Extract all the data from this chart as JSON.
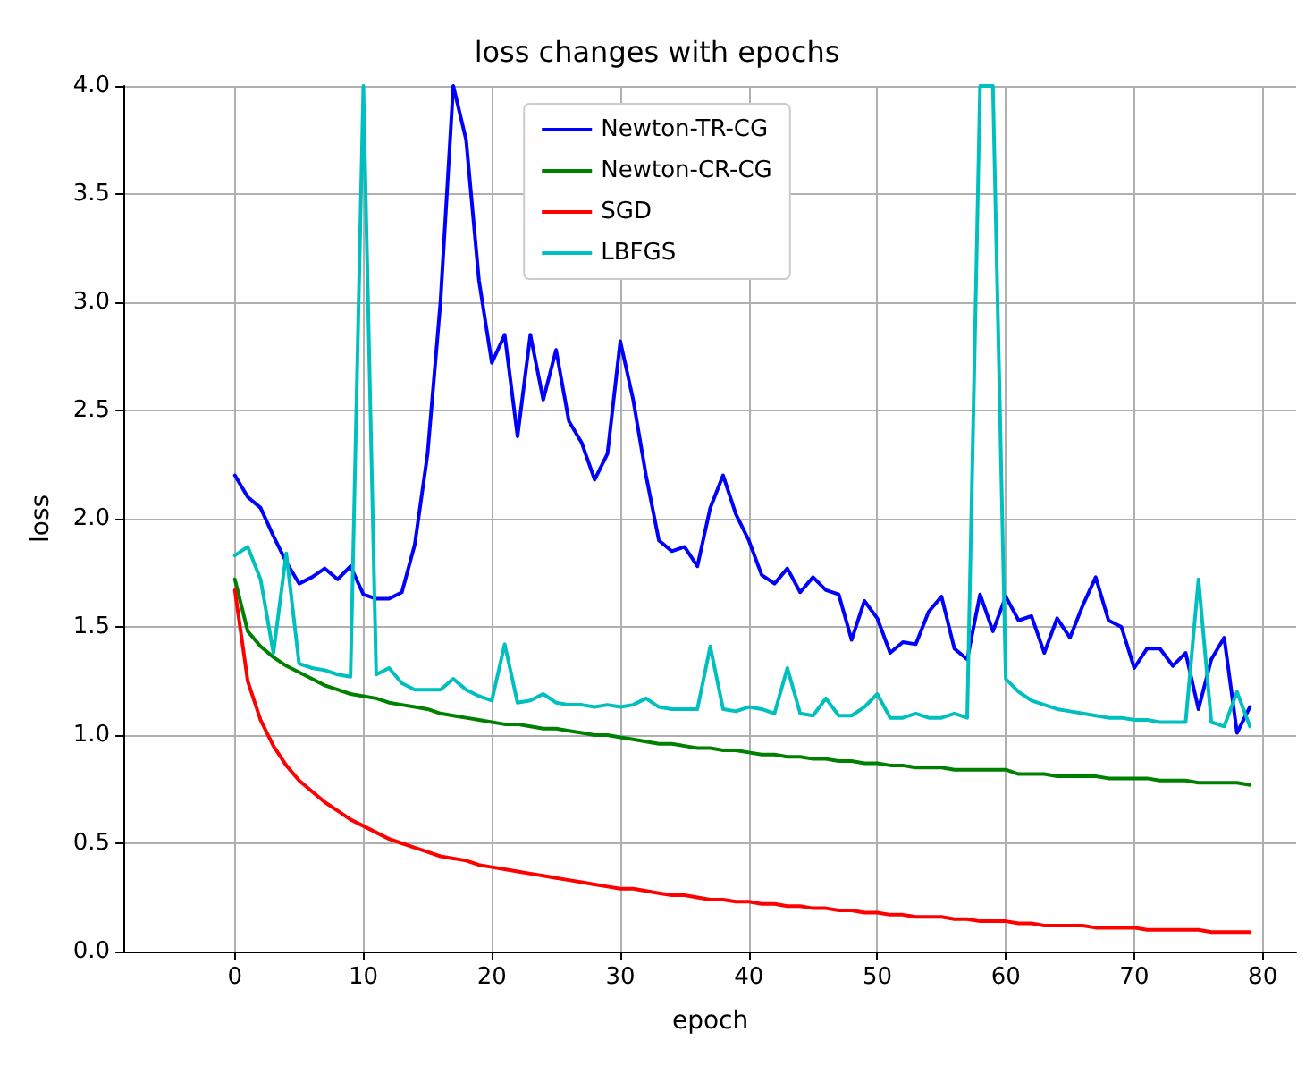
{
  "chart_data": {
    "type": "line",
    "title": "loss changes with epochs",
    "xlabel": "epoch",
    "ylabel": "loss",
    "x": [
      0,
      1,
      2,
      3,
      4,
      5,
      6,
      7,
      8,
      9,
      10,
      11,
      12,
      13,
      14,
      15,
      16,
      17,
      18,
      19,
      20,
      21,
      22,
      23,
      24,
      25,
      26,
      27,
      28,
      29,
      30,
      31,
      32,
      33,
      34,
      35,
      36,
      37,
      38,
      39,
      40,
      41,
      42,
      43,
      44,
      45,
      46,
      47,
      48,
      49,
      50,
      51,
      52,
      53,
      54,
      55,
      56,
      57,
      58,
      59,
      60,
      61,
      62,
      63,
      64,
      65,
      66,
      67,
      68,
      69,
      70,
      71,
      72,
      73,
      74,
      75,
      76,
      77,
      78,
      79
    ],
    "series": [
      {
        "name": "Newton-TR-CG",
        "color": "#0000ff",
        "values": [
          2.2,
          2.1,
          2.05,
          1.92,
          1.8,
          1.7,
          1.73,
          1.77,
          1.72,
          1.78,
          1.65,
          1.63,
          1.63,
          1.66,
          1.88,
          2.3,
          3.0,
          4.0,
          3.75,
          3.1,
          2.72,
          2.85,
          2.38,
          2.85,
          2.55,
          2.78,
          2.45,
          2.35,
          2.18,
          2.3,
          2.82,
          2.55,
          2.2,
          1.9,
          1.85,
          1.87,
          1.78,
          2.05,
          2.2,
          2.02,
          1.9,
          1.74,
          1.7,
          1.77,
          1.66,
          1.73,
          1.67,
          1.65,
          1.44,
          1.62,
          1.54,
          1.38,
          1.43,
          1.42,
          1.57,
          1.64,
          1.4,
          1.35,
          1.65,
          1.48,
          1.64,
          1.53,
          1.55,
          1.38,
          1.54,
          1.45,
          1.6,
          1.73,
          1.53,
          1.5,
          1.31,
          1.4,
          1.4,
          1.32,
          1.38,
          1.12,
          1.35,
          1.45,
          1.01,
          1.13
        ]
      },
      {
        "name": "Newton-CR-CG",
        "color": "#008000",
        "values": [
          1.72,
          1.48,
          1.41,
          1.36,
          1.32,
          1.29,
          1.26,
          1.23,
          1.21,
          1.19,
          1.18,
          1.17,
          1.15,
          1.14,
          1.13,
          1.12,
          1.1,
          1.09,
          1.08,
          1.07,
          1.06,
          1.05,
          1.05,
          1.04,
          1.03,
          1.03,
          1.02,
          1.01,
          1.0,
          1.0,
          0.99,
          0.98,
          0.97,
          0.96,
          0.96,
          0.95,
          0.94,
          0.94,
          0.93,
          0.93,
          0.92,
          0.91,
          0.91,
          0.9,
          0.9,
          0.89,
          0.89,
          0.88,
          0.88,
          0.87,
          0.87,
          0.86,
          0.86,
          0.85,
          0.85,
          0.85,
          0.84,
          0.84,
          0.84,
          0.84,
          0.84,
          0.82,
          0.82,
          0.82,
          0.81,
          0.81,
          0.81,
          0.81,
          0.8,
          0.8,
          0.8,
          0.8,
          0.79,
          0.79,
          0.79,
          0.78,
          0.78,
          0.78,
          0.78,
          0.77
        ]
      },
      {
        "name": "SGD",
        "color": "#ff0000",
        "values": [
          1.67,
          1.25,
          1.07,
          0.95,
          0.86,
          0.79,
          0.74,
          0.69,
          0.65,
          0.61,
          0.58,
          0.55,
          0.52,
          0.5,
          0.48,
          0.46,
          0.44,
          0.43,
          0.42,
          0.4,
          0.39,
          0.38,
          0.37,
          0.36,
          0.35,
          0.34,
          0.33,
          0.32,
          0.31,
          0.3,
          0.29,
          0.29,
          0.28,
          0.27,
          0.26,
          0.26,
          0.25,
          0.24,
          0.24,
          0.23,
          0.23,
          0.22,
          0.22,
          0.21,
          0.21,
          0.2,
          0.2,
          0.19,
          0.19,
          0.18,
          0.18,
          0.17,
          0.17,
          0.16,
          0.16,
          0.16,
          0.15,
          0.15,
          0.14,
          0.14,
          0.14,
          0.13,
          0.13,
          0.12,
          0.12,
          0.12,
          0.12,
          0.11,
          0.11,
          0.11,
          0.11,
          0.1,
          0.1,
          0.1,
          0.1,
          0.1,
          0.09,
          0.09,
          0.09,
          0.09
        ]
      },
      {
        "name": "LBFGS",
        "color": "#00bfbf",
        "values": [
          1.83,
          1.87,
          1.72,
          1.38,
          1.84,
          1.33,
          1.31,
          1.3,
          1.28,
          1.27,
          4.0,
          1.28,
          1.31,
          1.24,
          1.21,
          1.21,
          1.21,
          1.26,
          1.21,
          1.18,
          1.16,
          1.42,
          1.15,
          1.16,
          1.19,
          1.15,
          1.14,
          1.14,
          1.13,
          1.14,
          1.13,
          1.14,
          1.17,
          1.13,
          1.12,
          1.12,
          1.12,
          1.41,
          1.12,
          1.11,
          1.13,
          1.12,
          1.1,
          1.31,
          1.1,
          1.09,
          1.17,
          1.09,
          1.09,
          1.13,
          1.19,
          1.08,
          1.08,
          1.1,
          1.08,
          1.08,
          1.1,
          1.08,
          4.0,
          4.0,
          1.26,
          1.2,
          1.16,
          1.14,
          1.12,
          1.11,
          1.1,
          1.09,
          1.08,
          1.08,
          1.07,
          1.07,
          1.06,
          1.06,
          1.06,
          1.72,
          1.06,
          1.04,
          1.2,
          1.04
        ]
      }
    ],
    "xlim": [
      -8.6,
      82.6
    ],
    "xticks": [
      0,
      10,
      20,
      30,
      40,
      50,
      60,
      70,
      80
    ],
    "ylim": [
      0,
      4
    ],
    "yticks": [
      {
        "value": 0,
        "label": "0.0"
      },
      0.5,
      {
        "value": 1,
        "label": "1.0"
      },
      1.5,
      {
        "value": 2,
        "label": "2.0"
      },
      2.5,
      {
        "value": 3,
        "label": "3.0"
      },
      3.5,
      {
        "value": 4,
        "label": "4.0"
      }
    ],
    "grid": true,
    "legend": "top",
    "marker": "none",
    "line_style": "solid"
  }
}
